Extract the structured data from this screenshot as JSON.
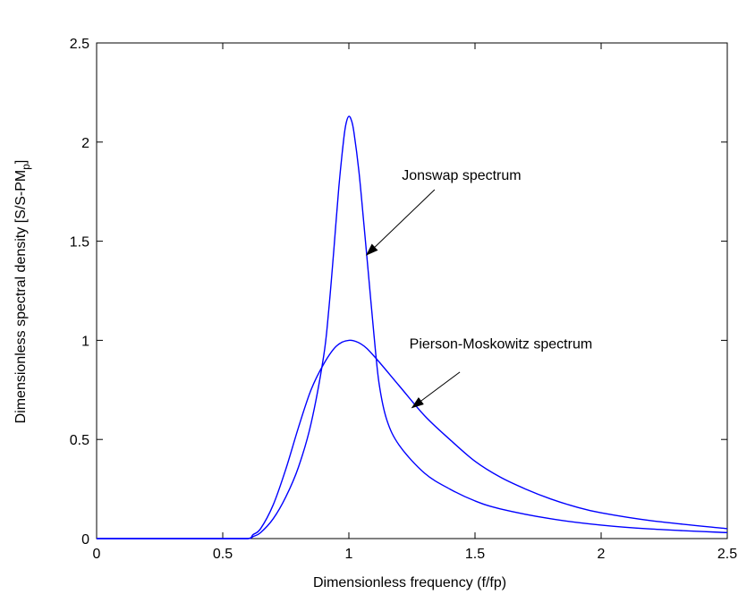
{
  "chart_data": {
    "type": "line",
    "title": "",
    "xlabel": "Dimensionless frequency (f/fp)",
    "ylabel_main": "Dimensionless spectral density [S/S-PM",
    "ylabel_sub": "p",
    "ylabel_end": "]",
    "xlim": [
      0,
      2.5
    ],
    "ylim": [
      0,
      2.5
    ],
    "xticks": [
      0,
      0.5,
      1,
      1.5,
      2,
      2.5
    ],
    "yticks": [
      0,
      0.5,
      1,
      1.5,
      2,
      2.5
    ],
    "xtick_labels": [
      "0",
      "0.5",
      "1",
      "1.5",
      "2",
      "2.5"
    ],
    "ytick_labels": [
      "0",
      "0.5",
      "1",
      "1.5",
      "2",
      "2.5"
    ],
    "grid": false,
    "line_color": "#0000ff",
    "series": [
      {
        "name": "Jonswap spectrum",
        "x": [
          0,
          0.5,
          0.6,
          0.62,
          0.65,
          0.7,
          0.75,
          0.8,
          0.85,
          0.9,
          0.92,
          0.94,
          0.96,
          0.98,
          0.99,
          1.0,
          1.01,
          1.02,
          1.04,
          1.06,
          1.08,
          1.1,
          1.12,
          1.15,
          1.2,
          1.3,
          1.4,
          1.5,
          1.6,
          1.8,
          2.0,
          2.2,
          2.5
        ],
        "y": [
          0,
          0,
          0.0,
          0.01,
          0.03,
          0.1,
          0.21,
          0.36,
          0.58,
          0.92,
          1.15,
          1.45,
          1.77,
          2.02,
          2.1,
          2.13,
          2.11,
          2.05,
          1.85,
          1.58,
          1.3,
          1.02,
          0.78,
          0.6,
          0.47,
          0.33,
          0.25,
          0.19,
          0.15,
          0.1,
          0.068,
          0.048,
          0.03
        ]
      },
      {
        "name": "Pierson-Moskowitz spectrum",
        "x": [
          0,
          0.5,
          0.6,
          0.62,
          0.65,
          0.7,
          0.75,
          0.8,
          0.85,
          0.9,
          0.95,
          1.0,
          1.05,
          1.1,
          1.2,
          1.3,
          1.4,
          1.5,
          1.6,
          1.7,
          1.8,
          1.9,
          2.0,
          2.2,
          2.5
        ],
        "y": [
          0,
          0,
          0.0,
          0.02,
          0.05,
          0.17,
          0.35,
          0.56,
          0.75,
          0.88,
          0.97,
          1.0,
          0.98,
          0.92,
          0.77,
          0.62,
          0.5,
          0.39,
          0.31,
          0.25,
          0.2,
          0.16,
          0.13,
          0.09,
          0.05
        ]
      }
    ],
    "annotations": [
      {
        "text": "Jonswap spectrum",
        "text_x": 1.21,
        "text_y": 1.81,
        "arrow_from_x": 1.34,
        "arrow_from_y": 1.76,
        "arrow_to_x": 1.07,
        "arrow_to_y": 1.43
      },
      {
        "text": "Pierson-Moskowitz spectrum",
        "text_x": 1.24,
        "text_y": 0.96,
        "arrow_from_x": 1.44,
        "arrow_from_y": 0.84,
        "arrow_to_x": 1.25,
        "arrow_to_y": 0.66
      }
    ]
  }
}
